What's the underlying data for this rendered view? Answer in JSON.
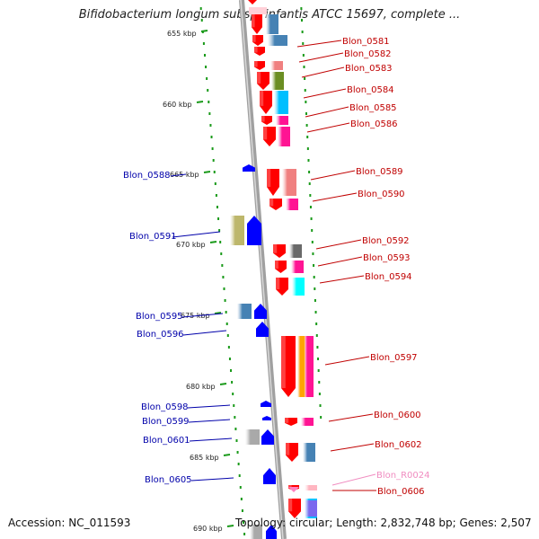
{
  "title": "Bifidobacterium longum subsp. infantis ATCC 15697, complete ...",
  "accession_text": "Accession: NC_011593",
  "summary_text": "Topology: circular; Length: 2,832,748 bp; Genes: 2,507",
  "scale_labels": [
    "655 kbp",
    "660 kbp",
    "665 kbp",
    "670 kbp",
    "675 kbp",
    "680 kbp",
    "685 kbp",
    "690 kbp"
  ],
  "colors": {
    "forward_label": "#c00000",
    "reverse_label": "#0000aa",
    "rna_label": "#f08cc0",
    "forward_arrow": "#ff0000",
    "reverse_arrow": "#0000ff"
  },
  "genes_right": [
    {
      "name": "Blon_0581",
      "color": "#4682b4"
    },
    {
      "name": "Blon_0582",
      "color": "#4682b4"
    },
    {
      "name": "Blon_0583",
      "color": "#f08080"
    },
    {
      "name": "Blon_0584",
      "color": "#6b8e23"
    },
    {
      "name": "Blon_0585",
      "color": "#00bfff"
    },
    {
      "name": "Blon_0586",
      "color": "#ff1493"
    },
    {
      "name": "Blon_0589",
      "color": "#f08080"
    },
    {
      "name": "Blon_0590",
      "color": "#ff1493"
    },
    {
      "name": "Blon_0592",
      "color": "#696969"
    },
    {
      "name": "Blon_0593",
      "color": "#ff1493"
    },
    {
      "name": "Blon_0594",
      "color": "#00ffff"
    },
    {
      "name": "Blon_0597",
      "color": "#ffa500"
    },
    {
      "name": "Blon_0600",
      "color": "#ff1493"
    },
    {
      "name": "Blon_0602",
      "color": "#4682b4"
    },
    {
      "name": "Blon_R0024",
      "color": "#ffb6c1"
    },
    {
      "name": "Blon_0606",
      "color": "#00bfff"
    }
  ],
  "genes_left": [
    {
      "name": "Blon_0588",
      "color": "#0000ff"
    },
    {
      "name": "Blon_0591",
      "color": "#bdb76b"
    },
    {
      "name": "Blon_0595",
      "color": "#4682b4"
    },
    {
      "name": "Blon_0596",
      "color": "#0000ff"
    },
    {
      "name": "Blon_0598",
      "color": "#0000ff"
    },
    {
      "name": "Blon_0599",
      "color": "#0000ff"
    },
    {
      "name": "Blon_0601",
      "color": "#a9a9a9"
    },
    {
      "name": "Blon_0605",
      "color": "#0000ff"
    }
  ]
}
